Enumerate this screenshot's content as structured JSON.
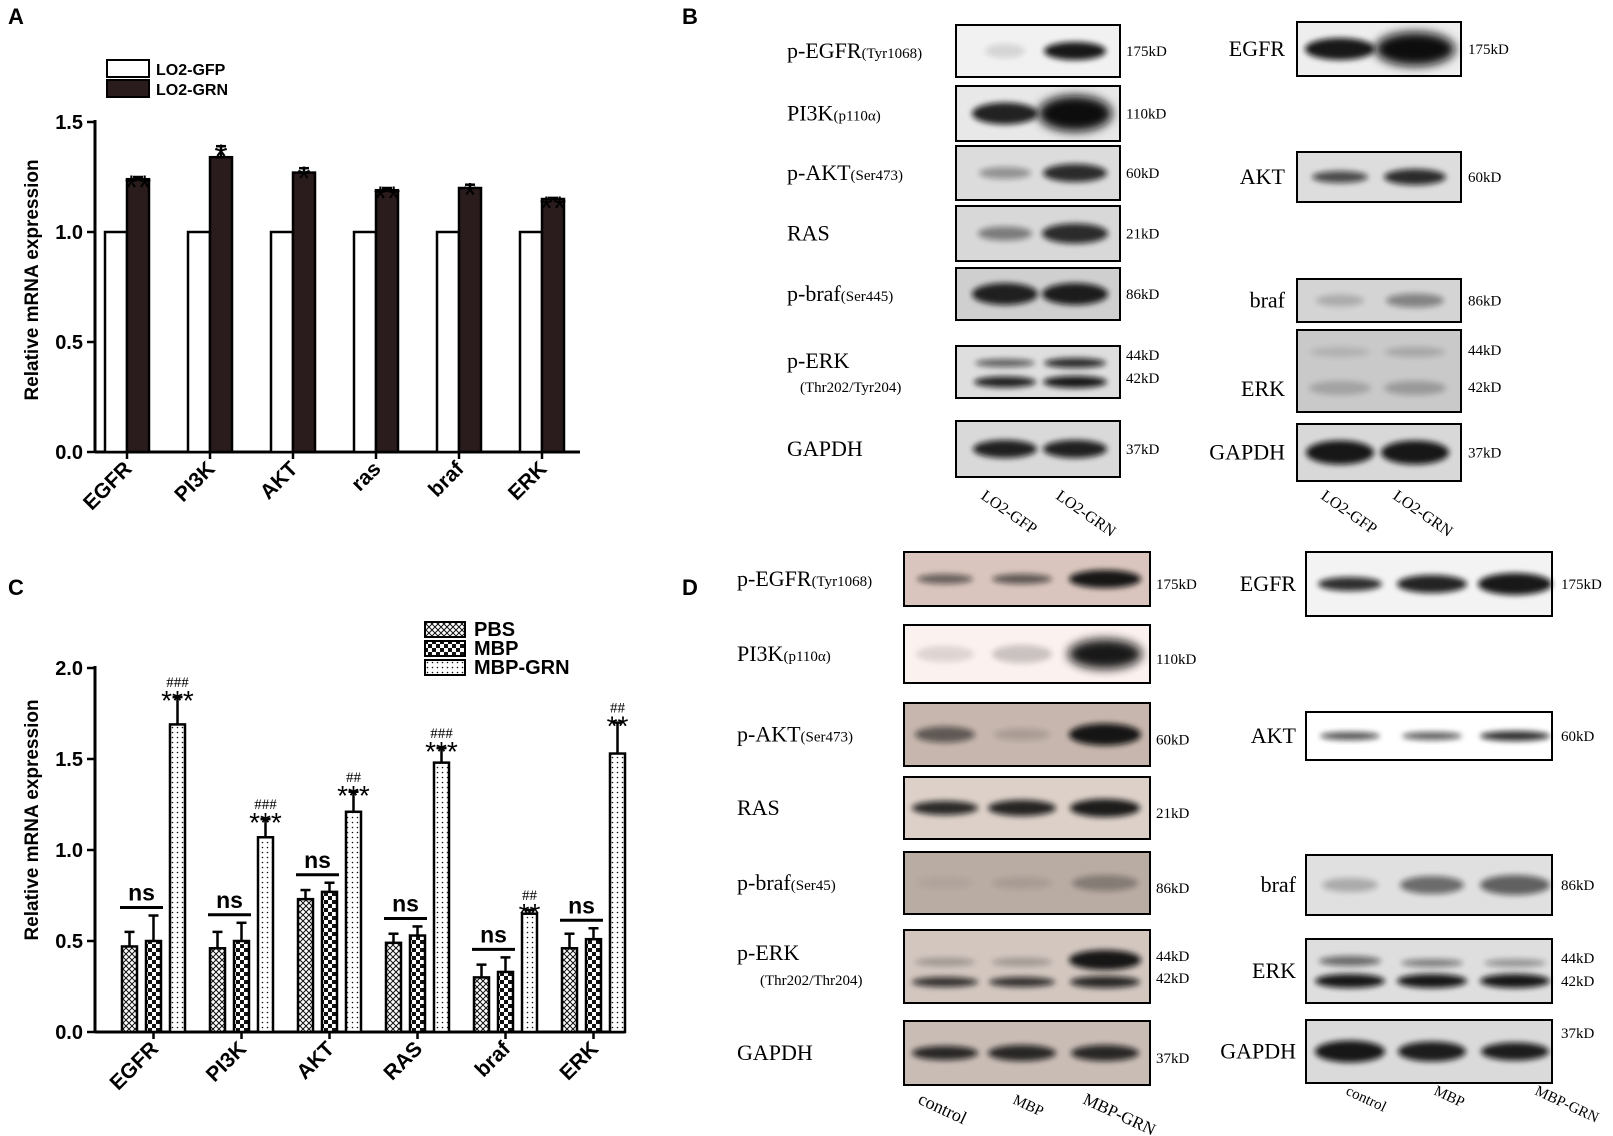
{
  "panels": {
    "A": "A",
    "B": "B",
    "C": "C",
    "D": "D"
  },
  "chart_data": [
    {
      "panel": "A",
      "type": "bar",
      "ylabel": "Relative mRNA expression",
      "ylim": [
        0,
        1.5
      ],
      "yticks": [
        "0.0",
        "0.5",
        "1.0",
        "1.5"
      ],
      "categories": [
        "EGFR",
        "PI3K",
        "AKT",
        "ras",
        "braf",
        "ERK"
      ],
      "legend": [
        "LO2-GFP",
        "LO2-GRN"
      ],
      "legend_position": "top-left",
      "series": [
        {
          "name": "LO2-GFP",
          "values": [
            1.0,
            1.0,
            1.0,
            1.0,
            1.0,
            1.0
          ],
          "errors": [
            0,
            0,
            0,
            0,
            0,
            0
          ],
          "fill": "#ffffff"
        },
        {
          "name": "LO2-GRN",
          "values": [
            1.24,
            1.34,
            1.27,
            1.19,
            1.2,
            1.15
          ],
          "errors": [
            0.01,
            0.05,
            0.02,
            0.01,
            0.015,
            0.005
          ],
          "fill": "#2a1c1c"
        }
      ],
      "annotations": [
        "**",
        "*",
        "*",
        "**",
        "*",
        "**"
      ]
    },
    {
      "panel": "C",
      "type": "bar",
      "ylabel": "Relative mRNA expression",
      "ylim": [
        0,
        2.0
      ],
      "yticks": [
        "0.0",
        "0.5",
        "1.0",
        "1.5",
        "2.0"
      ],
      "categories": [
        "EGFR",
        "PI3K",
        "AKT",
        "RAS",
        "braf",
        "ERK"
      ],
      "legend": [
        "PBS",
        "MBP",
        "MBP-GRN"
      ],
      "legend_position": "top-right",
      "series": [
        {
          "name": "PBS",
          "values": [
            0.47,
            0.46,
            0.73,
            0.49,
            0.3,
            0.46
          ],
          "errors": [
            0.08,
            0.09,
            0.05,
            0.05,
            0.07,
            0.08
          ]
        },
        {
          "name": "MBP",
          "values": [
            0.5,
            0.5,
            0.77,
            0.53,
            0.33,
            0.51
          ],
          "errors": [
            0.14,
            0.1,
            0.05,
            0.05,
            0.08,
            0.06
          ]
        },
        {
          "name": "MBP-GRN",
          "values": [
            1.69,
            1.07,
            1.21,
            1.48,
            0.65,
            1.53
          ],
          "errors": [
            0.15,
            0.1,
            0.11,
            0.08,
            0.02,
            0.17
          ]
        }
      ],
      "ns_labels": [
        "ns",
        "ns",
        "ns",
        "ns",
        "ns",
        "ns"
      ],
      "stars": [
        "***",
        "***",
        "***",
        "***",
        "**",
        "**"
      ],
      "hashes": [
        "###",
        "###",
        "##",
        "###",
        "##",
        "##"
      ]
    }
  ],
  "blot_B": {
    "left_labels": [
      {
        "main": "p-EGFR",
        "sub": "(Tyr1068)",
        "kd": "175kD"
      },
      {
        "main": "PI3K",
        "sub": "(p110α)",
        "kd": "110kD"
      },
      {
        "main": "p-AKT",
        "sub": "(Ser473)",
        "kd": "60kD"
      },
      {
        "main": "RAS",
        "sub": "",
        "kd": "21kD"
      },
      {
        "main": "p-braf",
        "sub": "(Ser445)",
        "kd": "86kD"
      },
      {
        "main": "p-ERK",
        "sub": "(Thr202/Tyr204)",
        "kd": "44kD",
        "kd2": "42kD"
      },
      {
        "main": "GAPDH",
        "sub": "",
        "kd": "37kD"
      }
    ],
    "right_labels": [
      {
        "main": "EGFR",
        "kd": "175kD"
      },
      {
        "main": "AKT",
        "kd": "60kD"
      },
      {
        "main": "braf",
        "kd": "86kD"
      },
      {
        "main": "ERK",
        "kd": "44kD",
        "kd2": "42kD"
      },
      {
        "main": "GAPDH",
        "kd": "37kD"
      }
    ],
    "lanes": [
      "LO2-GFP",
      "LO2-GRN"
    ]
  },
  "blot_D": {
    "left_labels": [
      {
        "main": "p-EGFR",
        "sub": "(Tyr1068)",
        "kd": "175kD"
      },
      {
        "main": "PI3K",
        "sub": "(p110α)",
        "kd": "110kD"
      },
      {
        "main": "p-AKT",
        "sub": "(Ser473)",
        "kd": "60kD"
      },
      {
        "main": "RAS",
        "sub": "",
        "kd": "21kD"
      },
      {
        "main": "p-braf",
        "sub": "(Ser45)",
        "kd": "86kD"
      },
      {
        "main": "p-ERK",
        "sub": "(Thr202/Thr204)",
        "kd": "44kD",
        "kd2": "42kD"
      },
      {
        "main": "GAPDH",
        "sub": "",
        "kd": "37kD"
      }
    ],
    "right_labels": [
      {
        "main": "EGFR",
        "kd": "175kD"
      },
      {
        "main": "AKT",
        "kd": "60kD"
      },
      {
        "main": "braf",
        "kd": "86kD"
      },
      {
        "main": "ERK",
        "kd": "44kD",
        "kd2": "42kD"
      },
      {
        "main": "GAPDH",
        "kd": "37kD"
      }
    ],
    "lanes": [
      "control",
      "MBP",
      "MBP-GRN"
    ]
  }
}
